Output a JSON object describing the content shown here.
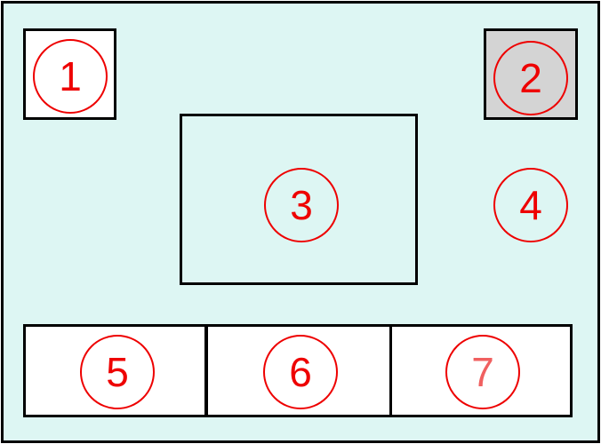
{
  "colors": {
    "background": "#ddf6f3",
    "box_fill": "#ffffff",
    "button_fill": "#d4d4d4",
    "outline": "#000000",
    "badge": "#ee0000"
  },
  "labels": {
    "b1": "1",
    "b2": "2",
    "b3": "3",
    "b4": "4",
    "b5": "5",
    "b6": "6",
    "b7": "7"
  }
}
